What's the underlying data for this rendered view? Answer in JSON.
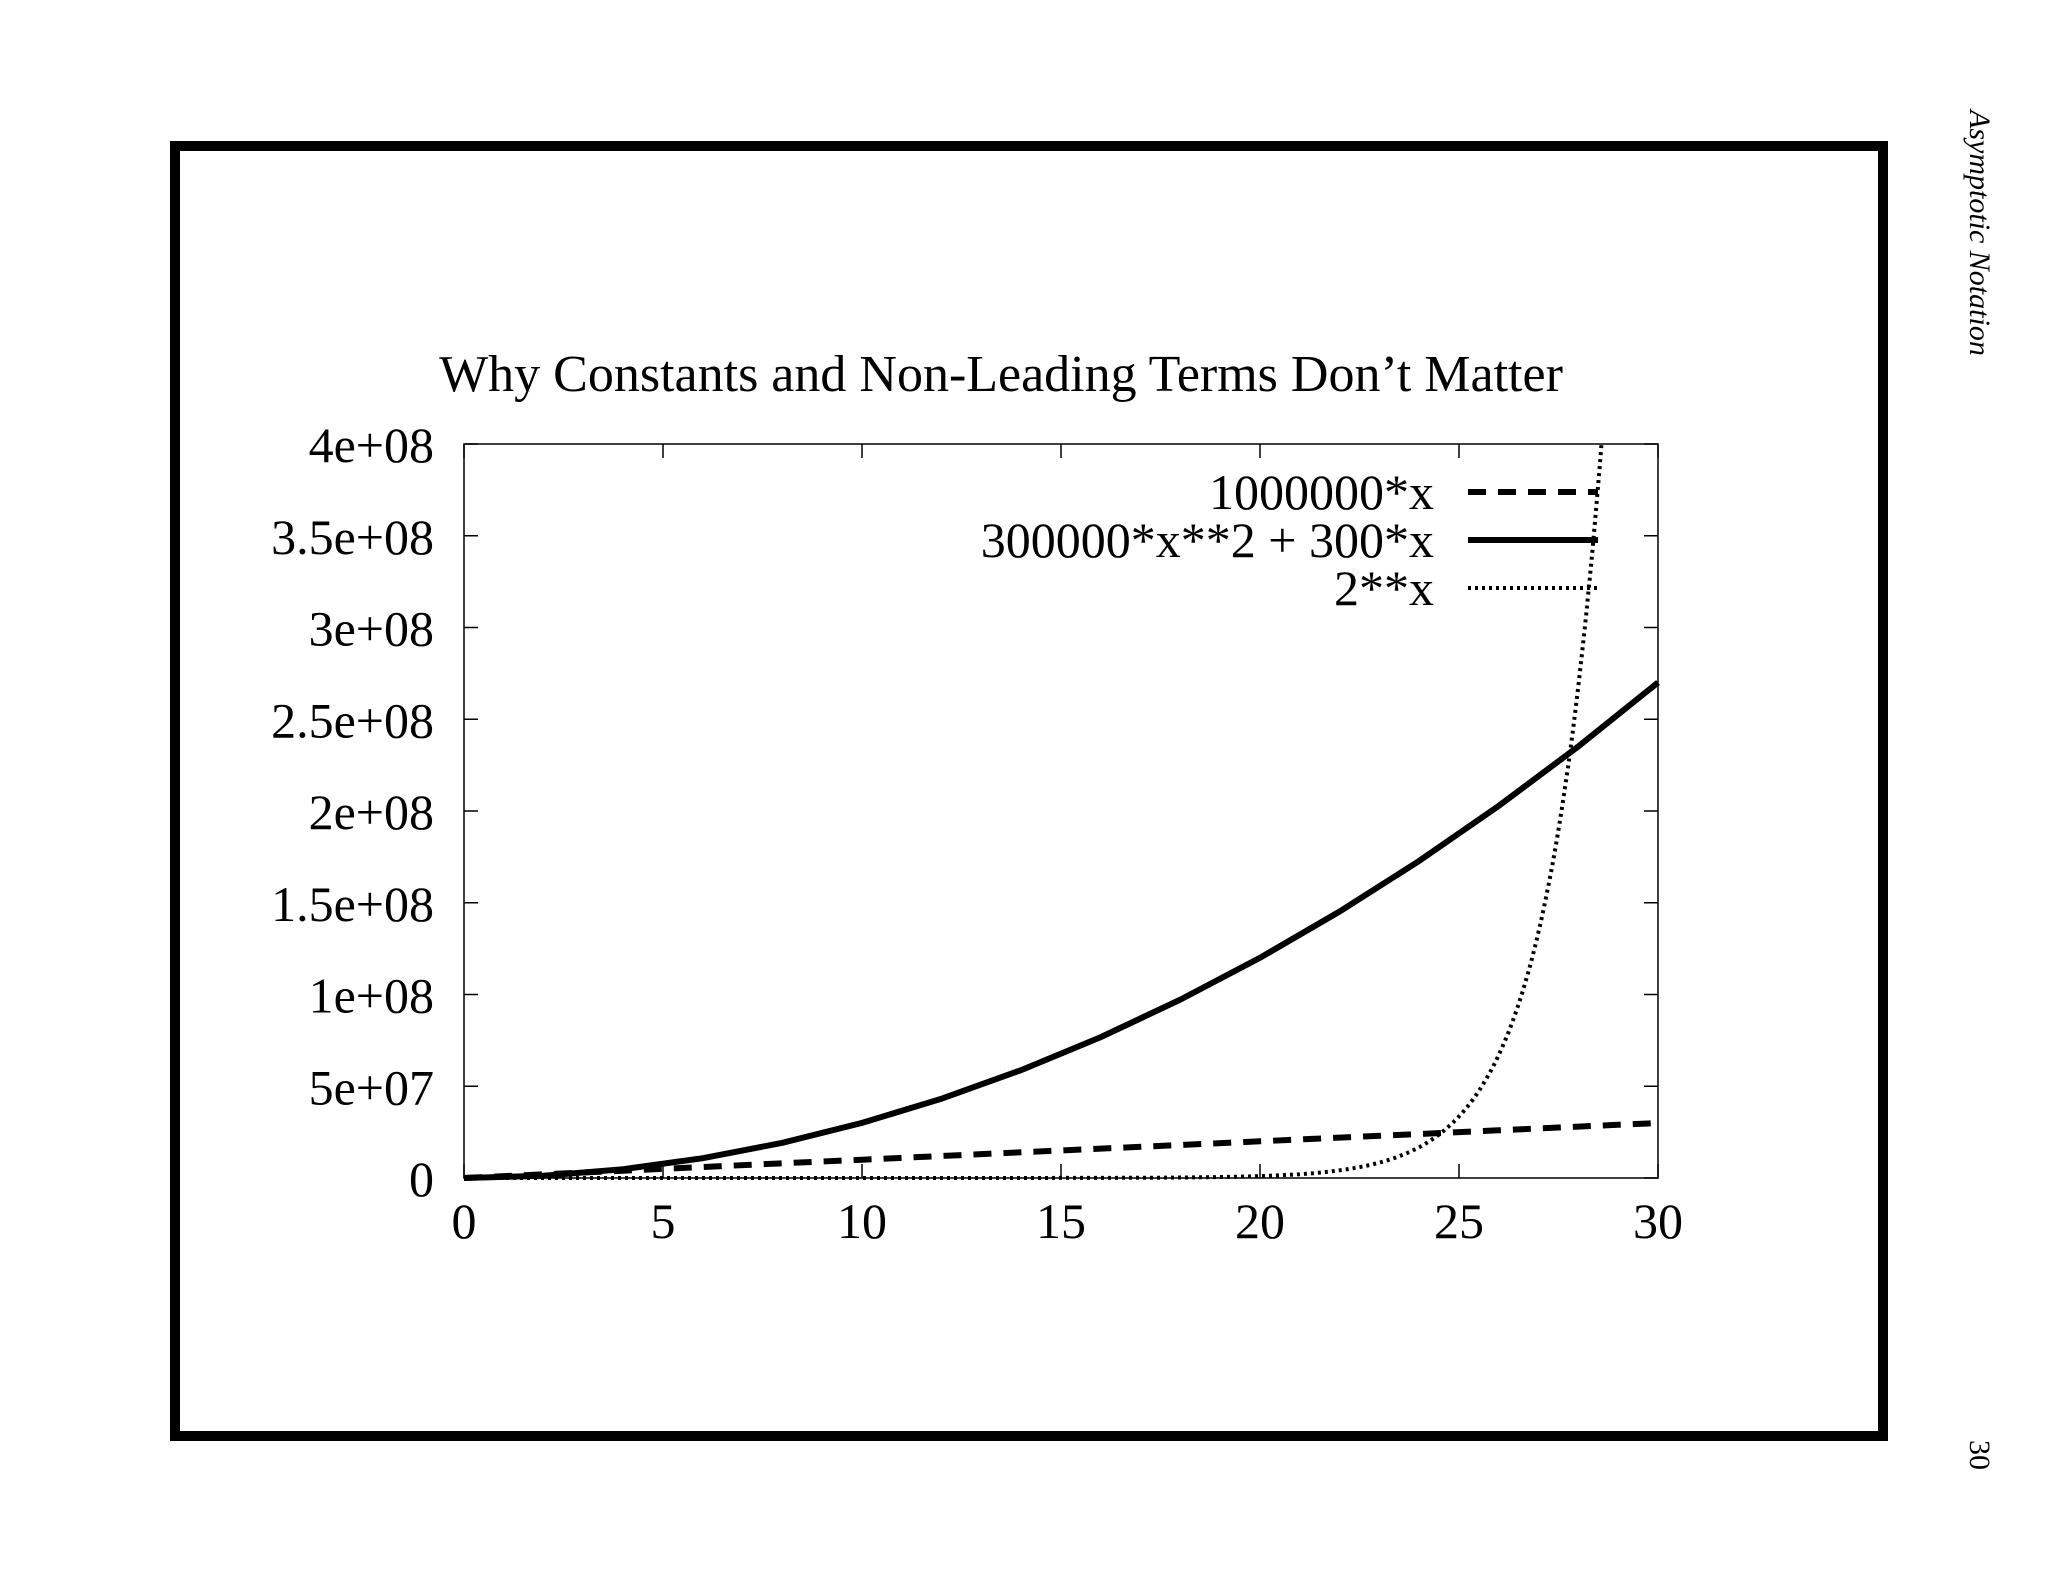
{
  "page": {
    "side_title": "Asymptotic Notation",
    "page_number": "30"
  },
  "chart_data": {
    "type": "line",
    "title": "Why Constants and Non-Leading Terms Don’t Matter",
    "xlabel": "",
    "ylabel": "",
    "xlim": [
      0,
      30
    ],
    "ylim": [
      0,
      400000000
    ],
    "x_ticks": [
      {
        "value": 0,
        "label": "0"
      },
      {
        "value": 5,
        "label": "5"
      },
      {
        "value": 10,
        "label": "10"
      },
      {
        "value": 15,
        "label": "15"
      },
      {
        "value": 20,
        "label": "20"
      },
      {
        "value": 25,
        "label": "25"
      },
      {
        "value": 30,
        "label": "30"
      }
    ],
    "y_ticks": [
      {
        "value": 0,
        "label": "0"
      },
      {
        "value": 50000000,
        "label": "5e+07"
      },
      {
        "value": 100000000,
        "label": "1e+08"
      },
      {
        "value": 150000000,
        "label": "1.5e+08"
      },
      {
        "value": 200000000,
        "label": "2e+08"
      },
      {
        "value": 250000000,
        "label": "2.5e+08"
      },
      {
        "value": 300000000,
        "label": "3e+08"
      },
      {
        "value": 350000000,
        "label": "3.5e+08"
      },
      {
        "value": 400000000,
        "label": "4e+08"
      }
    ],
    "grid": false,
    "legend_position": "top-right",
    "x": [
      0,
      2,
      4,
      6,
      8,
      10,
      12,
      14,
      16,
      18,
      20,
      22,
      24,
      26,
      28,
      30
    ],
    "series": [
      {
        "name": "1000000*x",
        "style": "dashed",
        "values": [
          0,
          2000000,
          4000000,
          6000000,
          8000000,
          10000000,
          12000000,
          14000000,
          16000000,
          18000000,
          20000000,
          22000000,
          24000000,
          26000000,
          28000000,
          30000000
        ]
      },
      {
        "name": "300000*x**2 + 300*x",
        "style": "solid",
        "values": [
          0,
          1200600,
          4801200,
          10801800,
          19202400,
          30003000,
          43203600,
          58804200,
          76804800,
          97205400,
          120006000,
          145206600,
          172807200,
          202807800,
          235208400,
          270009000
        ]
      },
      {
        "name": "2**x",
        "style": "dotted",
        "x": [
          0,
          10,
          15,
          18,
          20,
          21,
          22,
          23,
          24,
          25,
          26,
          27,
          28,
          28.58
        ],
        "values": [
          1,
          1024,
          32768,
          262144,
          1048576,
          2097152,
          4194304,
          8388608,
          16777216,
          33554432,
          67108864,
          134217728,
          268435456,
          400000000
        ]
      }
    ]
  }
}
